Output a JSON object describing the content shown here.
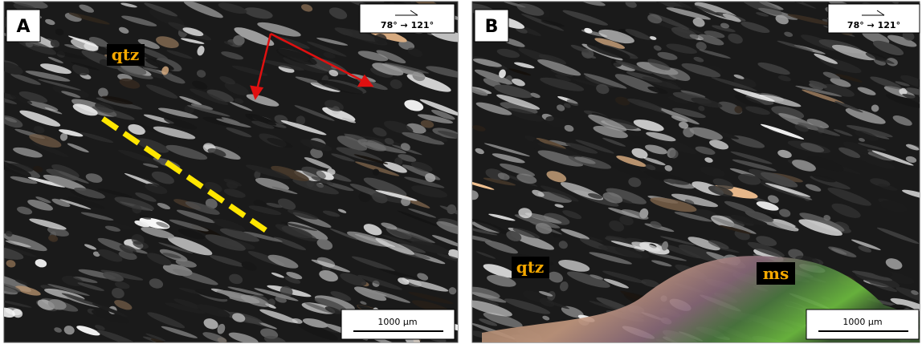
{
  "panels": [
    {
      "label": "A",
      "orientation": "78° → 121°",
      "scale": "1000 µm",
      "annotations": [
        "qtz"
      ]
    },
    {
      "label": "B",
      "orientation": "78° → 121°",
      "scale": "1000 µm",
      "annotations": [
        "qtz",
        "ms"
      ]
    }
  ]
}
